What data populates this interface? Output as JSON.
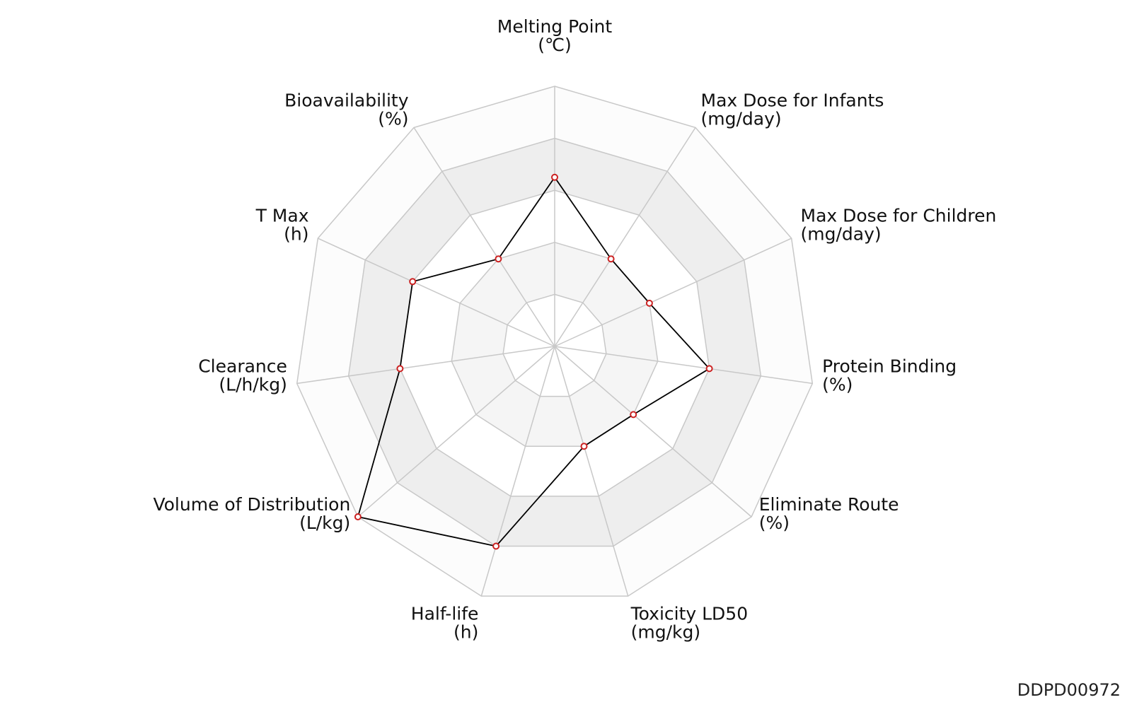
{
  "chart_data": {
    "type": "radar",
    "axes": [
      {
        "name": "Melting Point",
        "unit": "(℃)",
        "value": 0.65
      },
      {
        "name": "Max Dose for Infants",
        "unit": "(mg/day)",
        "value": 0.4
      },
      {
        "name": "Max Dose for Children",
        "unit": "(mg/day)",
        "value": 0.4
      },
      {
        "name": "Protein Binding",
        "unit": "(%)",
        "value": 0.6
      },
      {
        "name": "Eliminate Route",
        "unit": "(%)",
        "value": 0.4
      },
      {
        "name": "Toxicity LD50",
        "unit": "(mg/kg)",
        "value": 0.4
      },
      {
        "name": "Half-life",
        "unit": "(h)",
        "value": 0.8
      },
      {
        "name": "Volume of Distribution",
        "unit": "(L/kg)",
        "value": 1.0
      },
      {
        "name": "Clearance",
        "unit": "(L/h/kg)",
        "value": 0.6
      },
      {
        "name": "T Max",
        "unit": "(h)",
        "value": 0.6
      },
      {
        "name": "Bioavailability",
        "unit": "(%)",
        "value": 0.4
      }
    ],
    "rings": [
      0.2,
      0.4,
      0.6,
      0.8,
      1.0
    ],
    "ring_fills": [
      "#ffffff",
      "#f5f5f5",
      "#ffffff",
      "#eeeeee",
      "#fcfcfc"
    ],
    "grid_color": "#c8c8c8",
    "line_color": "#000000",
    "point_color": "#cc2222"
  },
  "footer": {
    "id": "DDPD00972"
  }
}
